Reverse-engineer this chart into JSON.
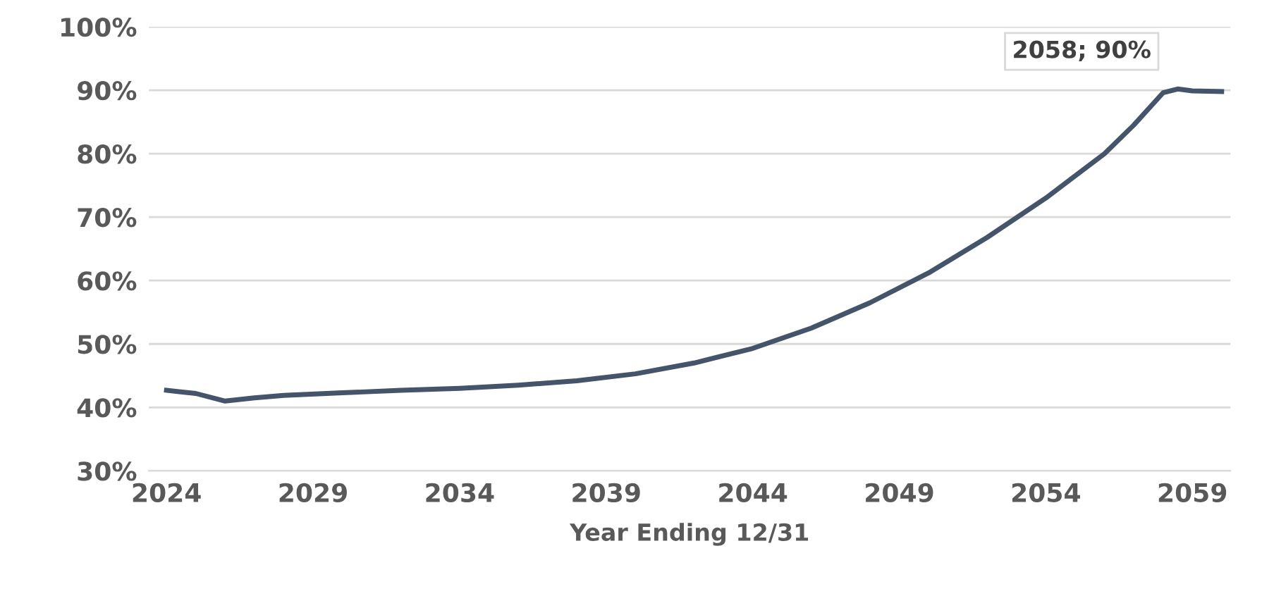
{
  "chart_data": {
    "type": "line",
    "xlabel": "Year Ending 12/31",
    "x": [
      2024,
      2025,
      2026,
      2027,
      2028,
      2030,
      2032,
      2034,
      2036,
      2038,
      2040,
      2042,
      2044,
      2046,
      2048,
      2050,
      2052,
      2054,
      2056,
      2057,
      2058,
      2058.5,
      2059,
      2060
    ],
    "series": [
      {
        "color": "#44546a",
        "values": [
          42.7,
          42.2,
          41.0,
          41.5,
          41.9,
          42.3,
          42.7,
          43.0,
          43.5,
          44.2,
          45.3,
          47.0,
          49.3,
          52.5,
          56.5,
          61.2,
          66.8,
          73.0,
          80.0,
          84.5,
          89.6,
          90.2,
          89.9,
          89.8
        ]
      }
    ],
    "xlim": [
      2023.4,
      2060.3
    ],
    "xticks": [
      2024,
      2029,
      2034,
      2039,
      2044,
      2049,
      2054,
      2059
    ],
    "ylim": [
      30,
      100
    ],
    "yticks": [
      {
        "value": 30,
        "label": "30%"
      },
      {
        "value": 40,
        "label": "40%"
      },
      {
        "value": 50,
        "label": "50%"
      },
      {
        "value": 60,
        "label": "60%"
      },
      {
        "value": 70,
        "label": "70%"
      },
      {
        "value": 80,
        "label": "80%"
      },
      {
        "value": 90,
        "label": "90%"
      },
      {
        "value": 100,
        "label": "100%"
      }
    ],
    "grid": "y",
    "legend": false,
    "marker": "none",
    "line_style": "solid",
    "annotations": [
      {
        "text": "2058; 90%",
        "x": 2058,
        "y": 90
      }
    ]
  }
}
